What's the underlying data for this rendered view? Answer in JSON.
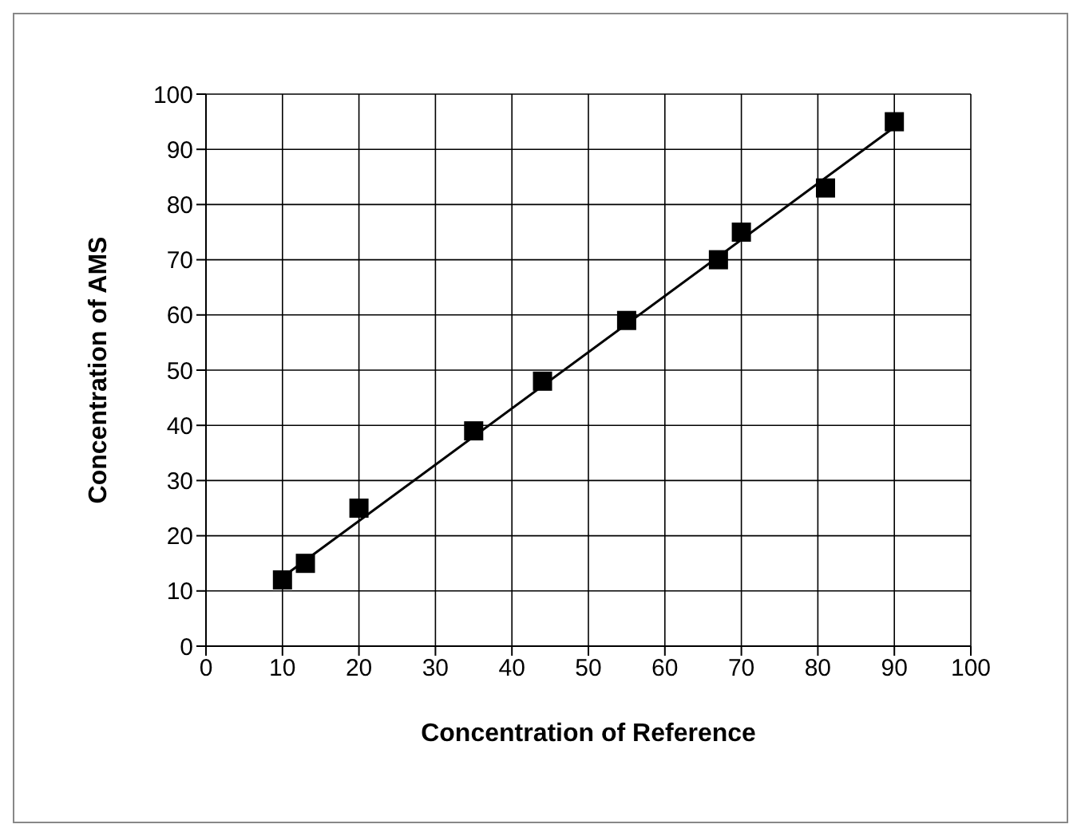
{
  "chart_data": {
    "type": "scatter",
    "xlabel": "Concentration of Reference",
    "ylabel": "Concentration of AMS",
    "x": [
      10,
      13,
      20,
      35,
      44,
      55,
      67,
      70,
      81,
      90
    ],
    "series": [
      {
        "color": "#000000",
        "marker": "square",
        "values": [
          12,
          15,
          25,
          39,
          48,
          59,
          70,
          75,
          83,
          95
        ]
      },
      {
        "type": "line",
        "color": "#000000",
        "marker": "none",
        "x": [
          10,
          90
        ],
        "values": [
          12.5,
          94
        ]
      }
    ],
    "xlim": [
      0,
      100
    ],
    "ylim": [
      0,
      100
    ],
    "xticks": [
      0,
      10,
      20,
      30,
      40,
      50,
      60,
      70,
      80,
      90,
      100
    ],
    "yticks": [
      0,
      10,
      20,
      30,
      40,
      50,
      60,
      70,
      80,
      90,
      100
    ],
    "grid": true,
    "legend": false
  }
}
